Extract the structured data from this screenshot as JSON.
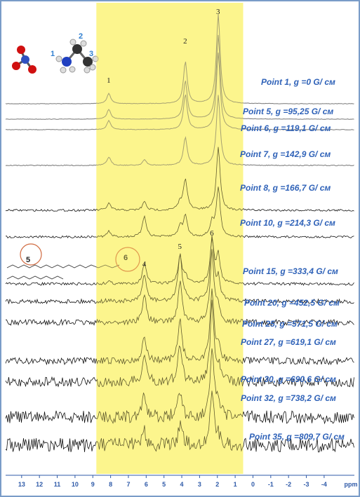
{
  "chart_data": {
    "type": "stacked-spectra",
    "xlabel": "ppm",
    "xlim": [
      13.9,
      -5.7
    ],
    "xticks": [
      13,
      12,
      11,
      10,
      9,
      8,
      7,
      6,
      5,
      4,
      3,
      2,
      1,
      0,
      -1,
      -2,
      -3,
      -4
    ],
    "highlight": [
      8.8,
      0.55
    ],
    "peaks": [
      {
        "label": "1",
        "ppm": 8.1
      },
      {
        "label": "2",
        "ppm": 3.8
      },
      {
        "label": "3",
        "ppm": 1.95
      },
      {
        "label": "4",
        "ppm": 6.1
      },
      {
        "label": "5",
        "ppm": 4.1
      },
      {
        "label": "6",
        "ppm": 2.3
      }
    ],
    "molecule_labels": [
      "1",
      "2",
      "3"
    ],
    "lipid_labels": [
      "5",
      "6"
    ],
    "series": [
      {
        "name": "Point 1, g =0 G/ cм"
      },
      {
        "name": "Point 5, g =95,25 G/ cм"
      },
      {
        "name": "Point 6, g =119,1 G/ cм"
      },
      {
        "name": "Point 7, g =142,9 G/ cм"
      },
      {
        "name": "Point 8, g =166,7 G/ cм"
      },
      {
        "name": "Point 10, g =214,3 G/ cм"
      },
      {
        "name": "Point 15, g =333,4 G/ cм"
      },
      {
        "name": "Point 20, g =452,5 G/ cм"
      },
      {
        "name": "Point 25, g =571,5 G/ cм"
      },
      {
        "name": "Point 27, g =619,1 G/ cм"
      },
      {
        "name": "Point 30, g =690,6 G/ cм"
      },
      {
        "name": "Point 32, g =738,2 G/ cм"
      },
      {
        "name": "Point 35, g =809,7 G/ cм"
      }
    ]
  }
}
